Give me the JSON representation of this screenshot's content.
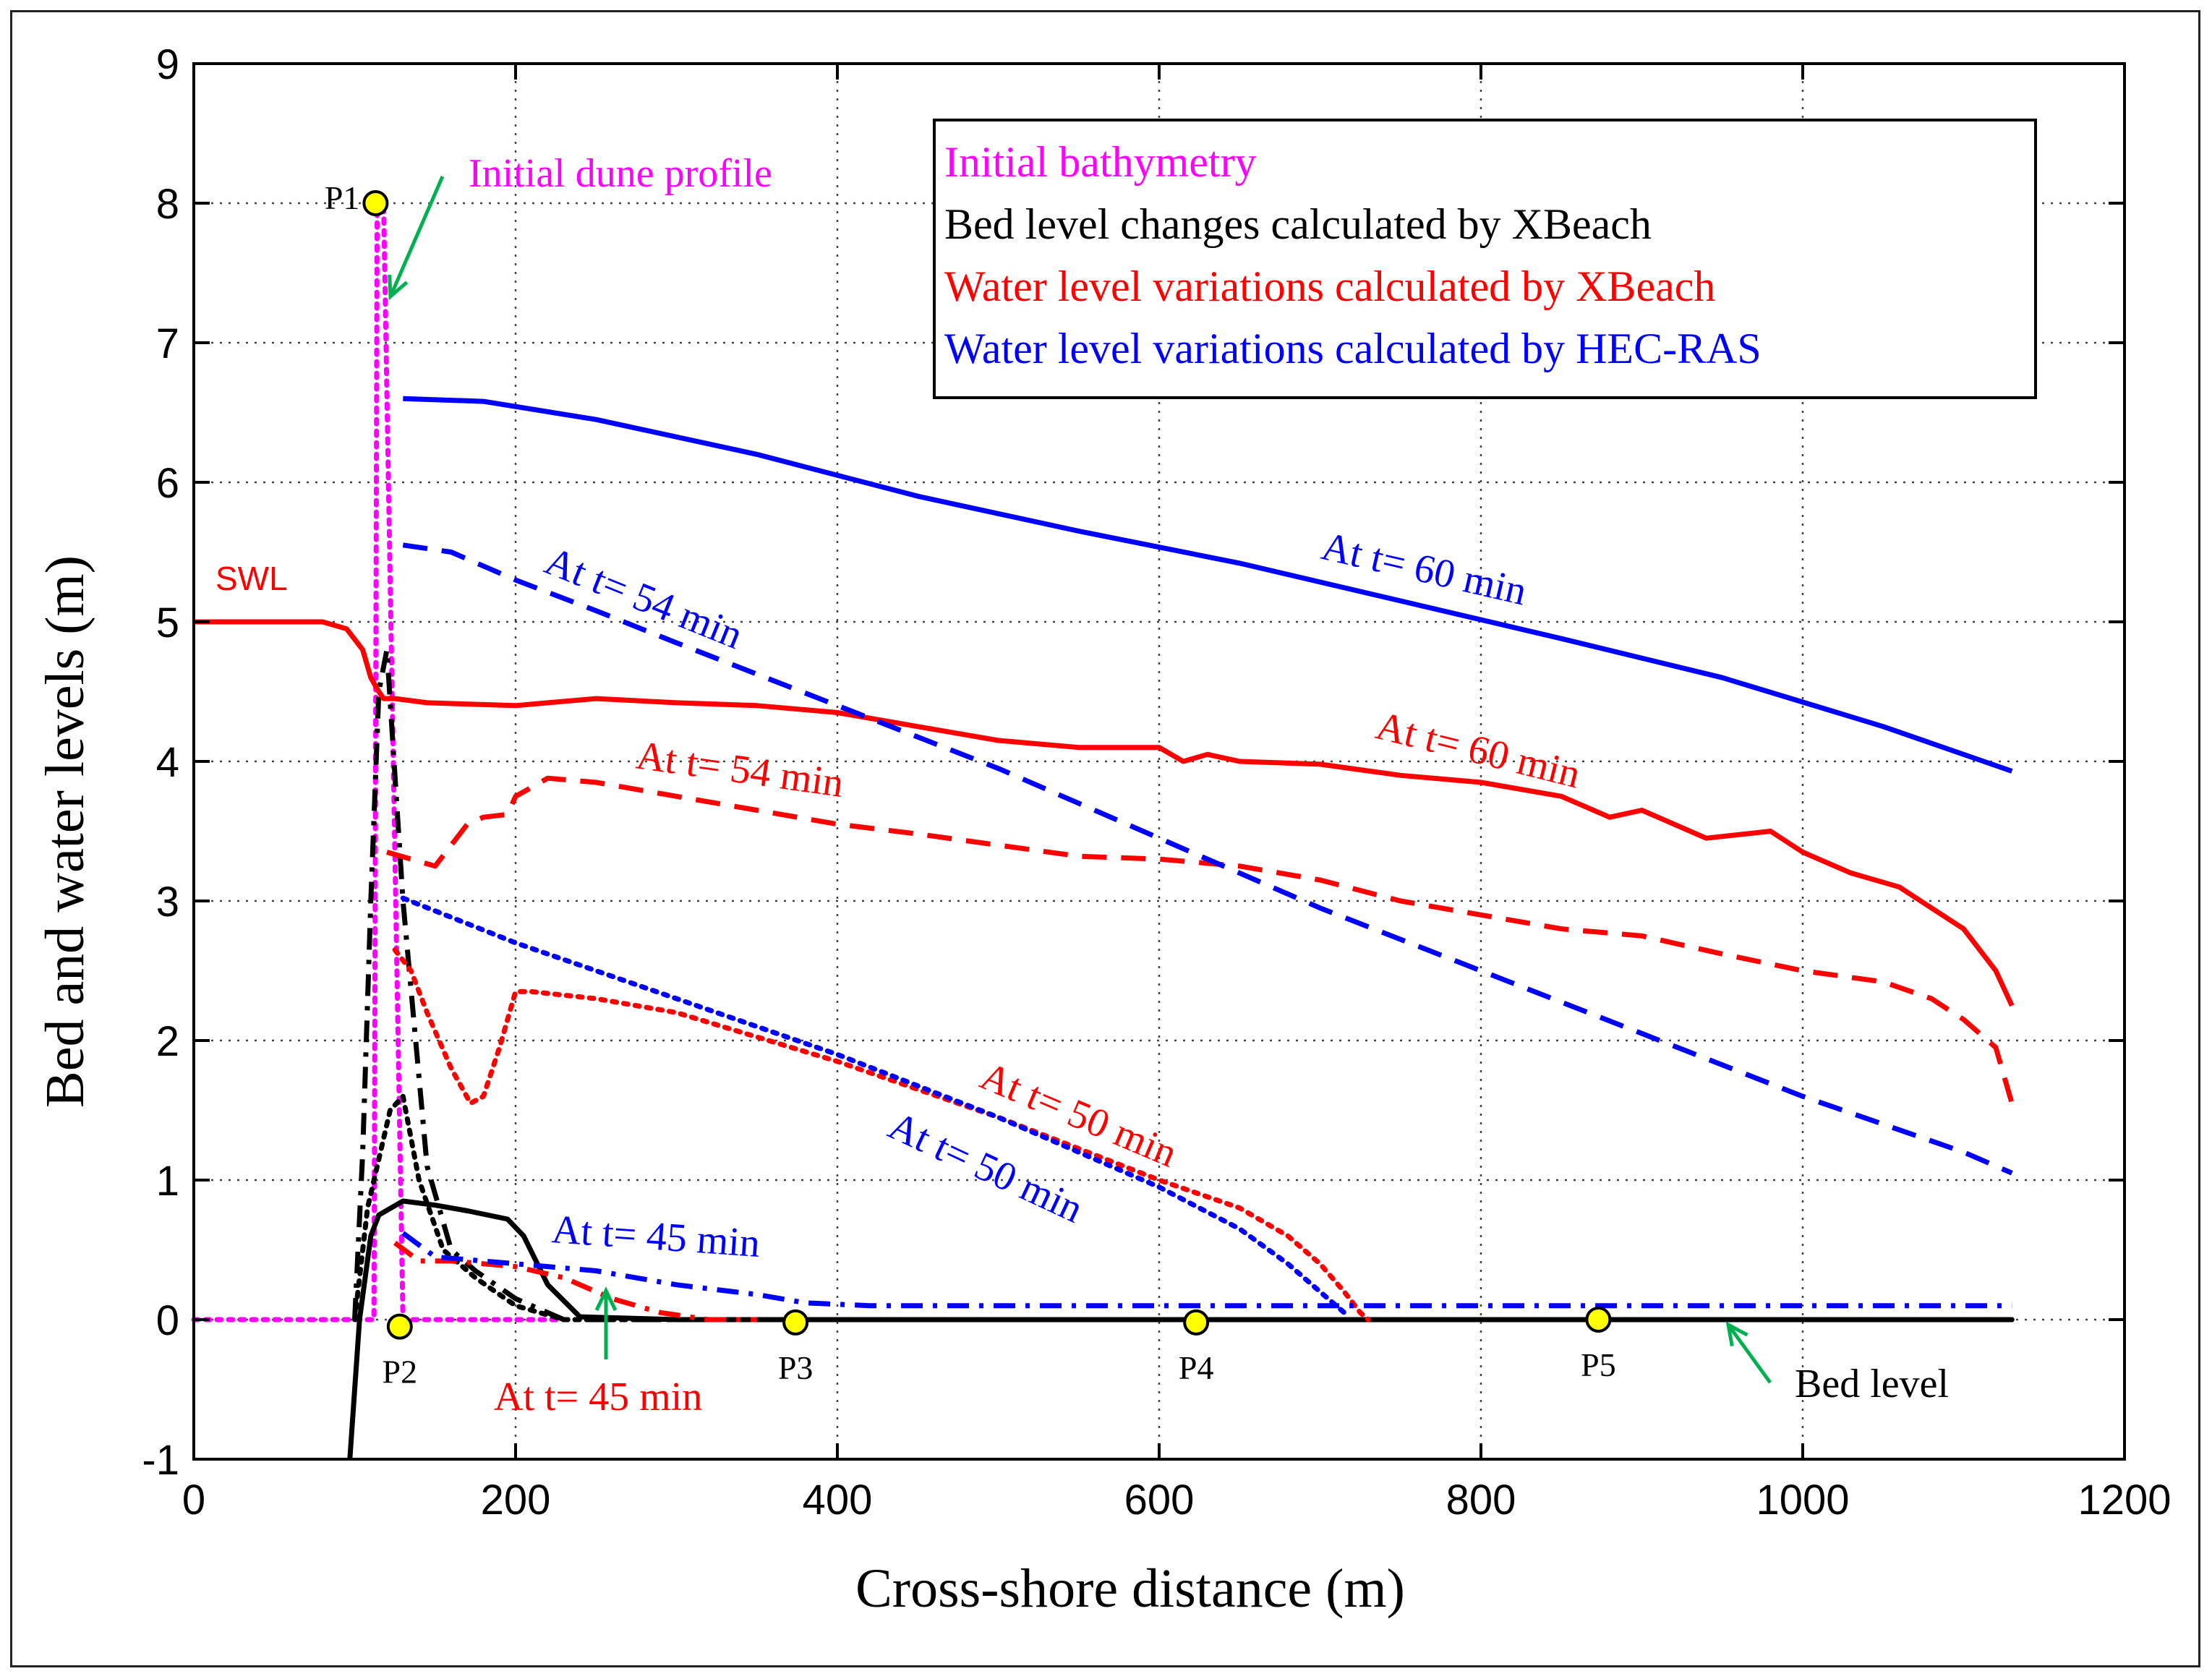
{
  "chart_data": {
    "type": "line",
    "title": "",
    "xlabel": "Cross-shore distance (m)",
    "ylabel": "Bed and water levels (m)",
    "xlim": [
      0,
      1200
    ],
    "ylim": [
      -1,
      9
    ],
    "xticks": [
      0,
      200,
      400,
      600,
      800,
      1000,
      1200
    ],
    "yticks": [
      -1,
      0,
      1,
      2,
      3,
      4,
      5,
      6,
      7,
      8,
      9
    ],
    "grid": true,
    "legend_position": "top-right",
    "legend": [
      {
        "label": "Initial bathymetry",
        "color": "#ff00ff"
      },
      {
        "label": "Bed level changes calculated by XBeach",
        "color": "#000000"
      },
      {
        "label": "Water level variations calculated by XBeach",
        "color": "#ff0000"
      },
      {
        "label": "Water level variations calculated by HEC-RAS",
        "color": "#0000ff"
      }
    ],
    "series": [
      {
        "name": "Initial bathymetry",
        "color": "#ff00ff",
        "dash": "dotted",
        "x": [
          0,
          100,
          112,
          114,
          116,
          118,
          130,
          1130
        ],
        "y": [
          0,
          0,
          0,
          8,
          8,
          8,
          0,
          0
        ]
      },
      {
        "name": "Bed level t=60 min",
        "color": "#000000",
        "dash": "solid",
        "x": [
          97,
          103,
          110,
          115,
          130,
          150,
          170,
          195,
          205,
          220,
          240,
          300,
          1130
        ],
        "y": [
          -1,
          0,
          0.6,
          0.75,
          0.85,
          0.82,
          0.78,
          0.72,
          0.6,
          0.25,
          0.02,
          0,
          0
        ]
      },
      {
        "name": "Bed level t=54 min",
        "color": "#000000",
        "dash": "dashdot",
        "x": [
          100,
          105,
          110,
          115,
          120,
          130,
          145,
          160,
          175,
          200,
          230,
          1130
        ],
        "y": [
          0,
          1.2,
          3.0,
          4.5,
          4.8,
          3.0,
          1.1,
          0.5,
          0.35,
          0.15,
          0,
          0
        ]
      },
      {
        "name": "Bed level t=50 min",
        "color": "#000000",
        "dash": "dotted",
        "x": [
          100,
          108,
          115,
          122,
          130,
          140,
          155,
          175,
          200,
          230,
          1130
        ],
        "y": [
          0,
          0.8,
          1.15,
          1.5,
          1.6,
          1.0,
          0.5,
          0.3,
          0.1,
          0,
          0
        ]
      },
      {
        "name": "XBeach t=60 min",
        "color": "#ff0000",
        "dash": "solid",
        "x": [
          0,
          80,
          95,
          105,
          110,
          115,
          118,
          125,
          145,
          200,
          250,
          300,
          350,
          400,
          450,
          500,
          550,
          600,
          615,
          630,
          650,
          700,
          750,
          800,
          850,
          880,
          900,
          940,
          980,
          1000,
          1030,
          1060,
          1080,
          1100,
          1120,
          1130
        ],
        "y": [
          5.0,
          5.0,
          4.95,
          4.8,
          4.6,
          4.5,
          4.45,
          4.45,
          4.42,
          4.4,
          4.45,
          4.42,
          4.4,
          4.35,
          4.25,
          4.15,
          4.1,
          4.1,
          4.0,
          4.05,
          4.0,
          3.98,
          3.9,
          3.85,
          3.75,
          3.6,
          3.65,
          3.45,
          3.5,
          3.35,
          3.2,
          3.1,
          2.95,
          2.8,
          2.5,
          2.25
        ]
      },
      {
        "name": "XBeach t=54 min",
        "color": "#ff0000",
        "dash": "dashed",
        "x": [
          120,
          135,
          150,
          160,
          170,
          180,
          195,
          200,
          220,
          250,
          300,
          350,
          400,
          450,
          500,
          550,
          600,
          650,
          700,
          750,
          800,
          850,
          900,
          950,
          1000,
          1050,
          1080,
          1100,
          1120,
          1130
        ],
        "y": [
          3.35,
          3.3,
          3.25,
          3.4,
          3.55,
          3.6,
          3.62,
          3.75,
          3.88,
          3.85,
          3.75,
          3.65,
          3.55,
          3.48,
          3.4,
          3.32,
          3.3,
          3.25,
          3.15,
          3.0,
          2.9,
          2.8,
          2.75,
          2.62,
          2.5,
          2.42,
          2.3,
          2.15,
          1.95,
          1.55
        ]
      },
      {
        "name": "XBeach t=50 min",
        "color": "#ff0000",
        "dash": "dotted",
        "x": [
          125,
          135,
          145,
          160,
          172,
          180,
          190,
          200,
          210,
          250,
          300,
          400,
          500,
          600,
          650,
          680,
          700,
          715,
          725,
          730
        ],
        "y": [
          2.65,
          2.5,
          2.2,
          1.8,
          1.55,
          1.6,
          1.95,
          2.35,
          2.35,
          2.3,
          2.2,
          1.85,
          1.45,
          1.0,
          0.8,
          0.6,
          0.4,
          0.2,
          0.05,
          0.0
        ]
      },
      {
        "name": "XBeach t=45 min",
        "color": "#ff0000",
        "dash": "dashdot",
        "x": [
          125,
          140,
          160,
          180,
          200,
          230,
          260,
          290,
          320,
          350
        ],
        "y": [
          0.55,
          0.42,
          0.42,
          0.4,
          0.38,
          0.3,
          0.15,
          0.05,
          0.0,
          0.0
        ]
      },
      {
        "name": "HEC-RAS t=60 min",
        "color": "#0000ff",
        "dash": "solid",
        "x": [
          130,
          180,
          250,
          350,
          450,
          550,
          650,
          750,
          850,
          950,
          1050,
          1130
        ],
        "y": [
          6.6,
          6.58,
          6.45,
          6.2,
          5.9,
          5.65,
          5.42,
          5.15,
          4.88,
          4.6,
          4.25,
          3.93
        ]
      },
      {
        "name": "HEC-RAS t=54 min",
        "color": "#0000ff",
        "dash": "dashed",
        "x": [
          130,
          160,
          200,
          250,
          300,
          400,
          500,
          600,
          700,
          800,
          900,
          1000,
          1100,
          1130
        ],
        "y": [
          5.55,
          5.5,
          5.3,
          5.08,
          4.85,
          4.4,
          3.95,
          3.45,
          2.95,
          2.5,
          2.05,
          1.6,
          1.2,
          1.05
        ]
      },
      {
        "name": "HEC-RAS t=50 min",
        "color": "#0000ff",
        "dash": "dotted",
        "x": [
          130,
          200,
          300,
          400,
          500,
          550,
          600,
          650,
          680,
          700,
          715
        ],
        "y": [
          3.02,
          2.7,
          2.3,
          1.9,
          1.45,
          1.2,
          0.95,
          0.65,
          0.4,
          0.2,
          0.05
        ]
      },
      {
        "name": "HEC-RAS t=45 min",
        "color": "#0000ff",
        "dash": "dashdot",
        "x": [
          130,
          150,
          200,
          250,
          300,
          350,
          380,
          420,
          600,
          1130
        ],
        "y": [
          0.62,
          0.45,
          0.4,
          0.35,
          0.25,
          0.18,
          0.12,
          0.1,
          0.1,
          0.1
        ]
      }
    ],
    "points": [
      {
        "label": "P1",
        "x": 113,
        "y": 8.0
      },
      {
        "label": "P2",
        "x": 128,
        "y": -0.05
      },
      {
        "label": "P3",
        "x": 374,
        "y": -0.02
      },
      {
        "label": "P4",
        "x": 623,
        "y": -0.02
      },
      {
        "label": "P5",
        "x": 873,
        "y": 0.0
      }
    ],
    "annotations": [
      {
        "text": "Initial dune profile",
        "color": "#ff00ff"
      },
      {
        "text": "SWL",
        "color": "#ff0000"
      },
      {
        "text": "At t= 60 min",
        "color": "#0000ff"
      },
      {
        "text": "At t= 54 min",
        "color": "#0000ff"
      },
      {
        "text": "At t= 50 min",
        "color": "#0000ff"
      },
      {
        "text": "At t= 45 min",
        "color": "#0000ff"
      },
      {
        "text": "At t= 60 min",
        "color": "#ff0000"
      },
      {
        "text": "At t= 54 min",
        "color": "#ff0000"
      },
      {
        "text": "At t= 50 min",
        "color": "#ff0000"
      },
      {
        "text": "At t= 45 min",
        "color": "#ff0000"
      },
      {
        "text": "Bed level",
        "color": "#000000"
      }
    ]
  }
}
